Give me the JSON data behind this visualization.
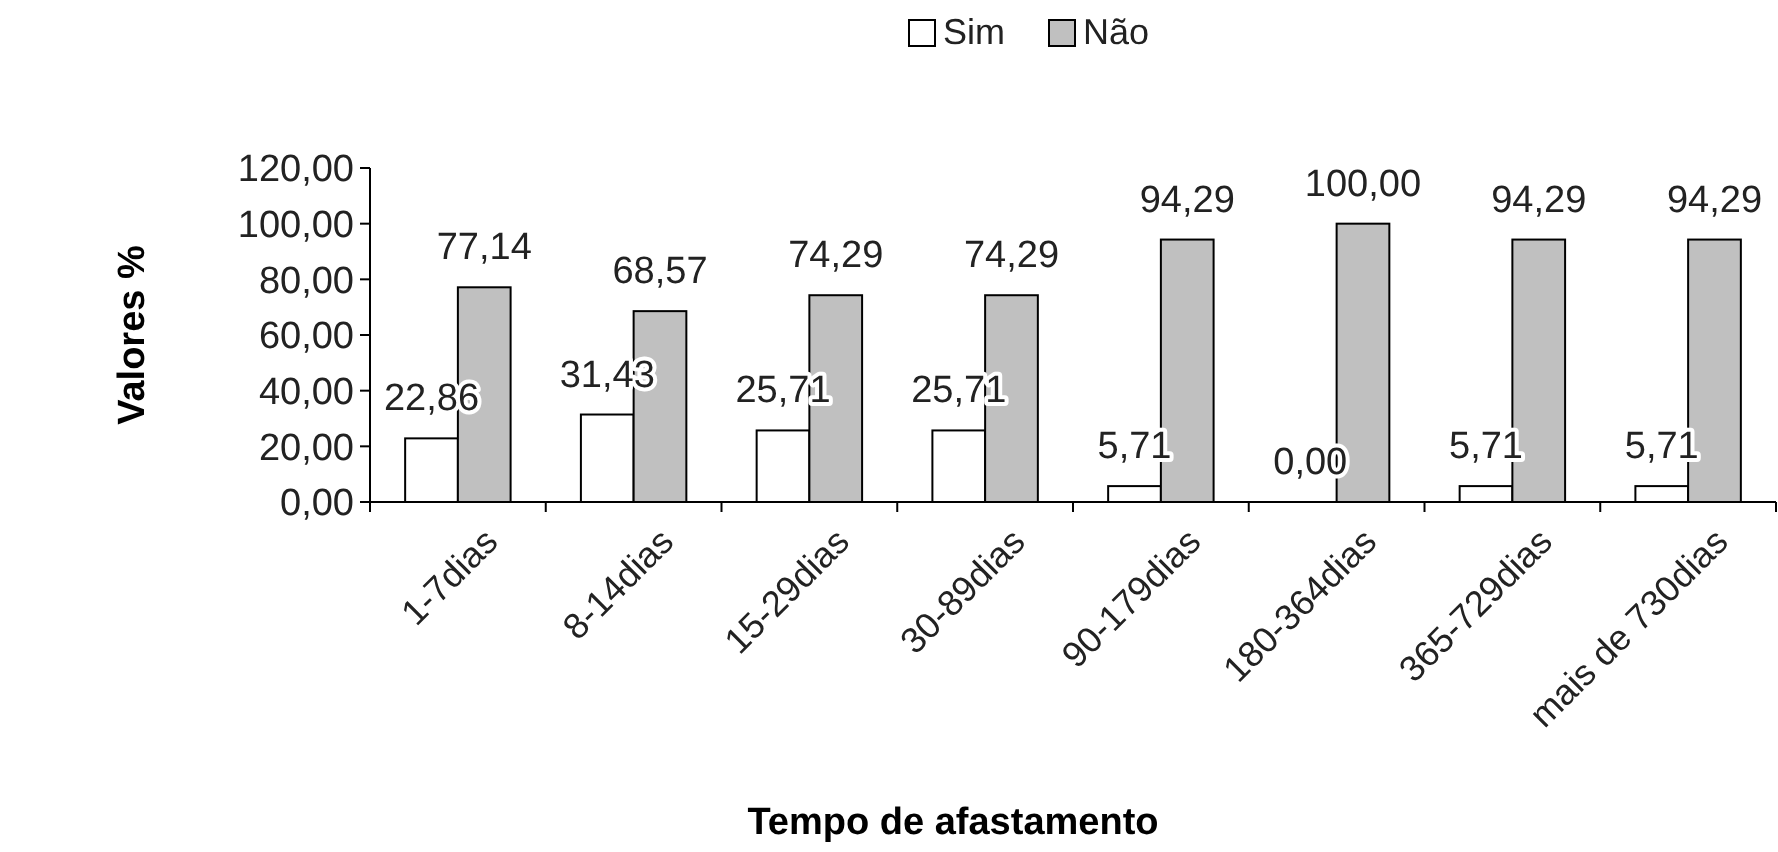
{
  "chart_data": {
    "type": "bar",
    "xlabel": "Tempo de afastamento",
    "ylabel": "Valores %",
    "categories": [
      "1-7dias",
      "8-14dias",
      "15-29dias",
      "30-89dias",
      "90-179dias",
      "180-364dias",
      "365-729dias",
      "mais de 730dias"
    ],
    "series": [
      {
        "name": "Sim",
        "color": "#ffffff",
        "values": [
          22.86,
          31.43,
          25.71,
          25.71,
          5.71,
          0,
          5.71,
          5.71
        ],
        "value_labels": [
          "22,86",
          "31,43",
          "25,71",
          "25,71",
          "5,71",
          "0,00",
          "5,71",
          "5,71"
        ]
      },
      {
        "name": "Não",
        "color": "#c0c0c0",
        "values": [
          77.14,
          68.57,
          74.29,
          74.29,
          94.29,
          100,
          94.29,
          94.29
        ],
        "value_labels": [
          "77,14",
          "68,57",
          "74,29",
          "74,29",
          "94,29",
          "100,00",
          "94,29",
          "94,29"
        ]
      }
    ],
    "ylim": [
      0,
      120
    ],
    "yticks": [
      {
        "value": 0,
        "label": "0,00"
      },
      {
        "value": 20,
        "label": "20,00"
      },
      {
        "value": 40,
        "label": "40,00"
      },
      {
        "value": 60,
        "label": "60,00"
      },
      {
        "value": 80,
        "label": "80,00"
      },
      {
        "value": 100,
        "label": "100,00"
      },
      {
        "value": 120,
        "label": "120,00"
      }
    ],
    "legend": "top",
    "grid": false
  }
}
